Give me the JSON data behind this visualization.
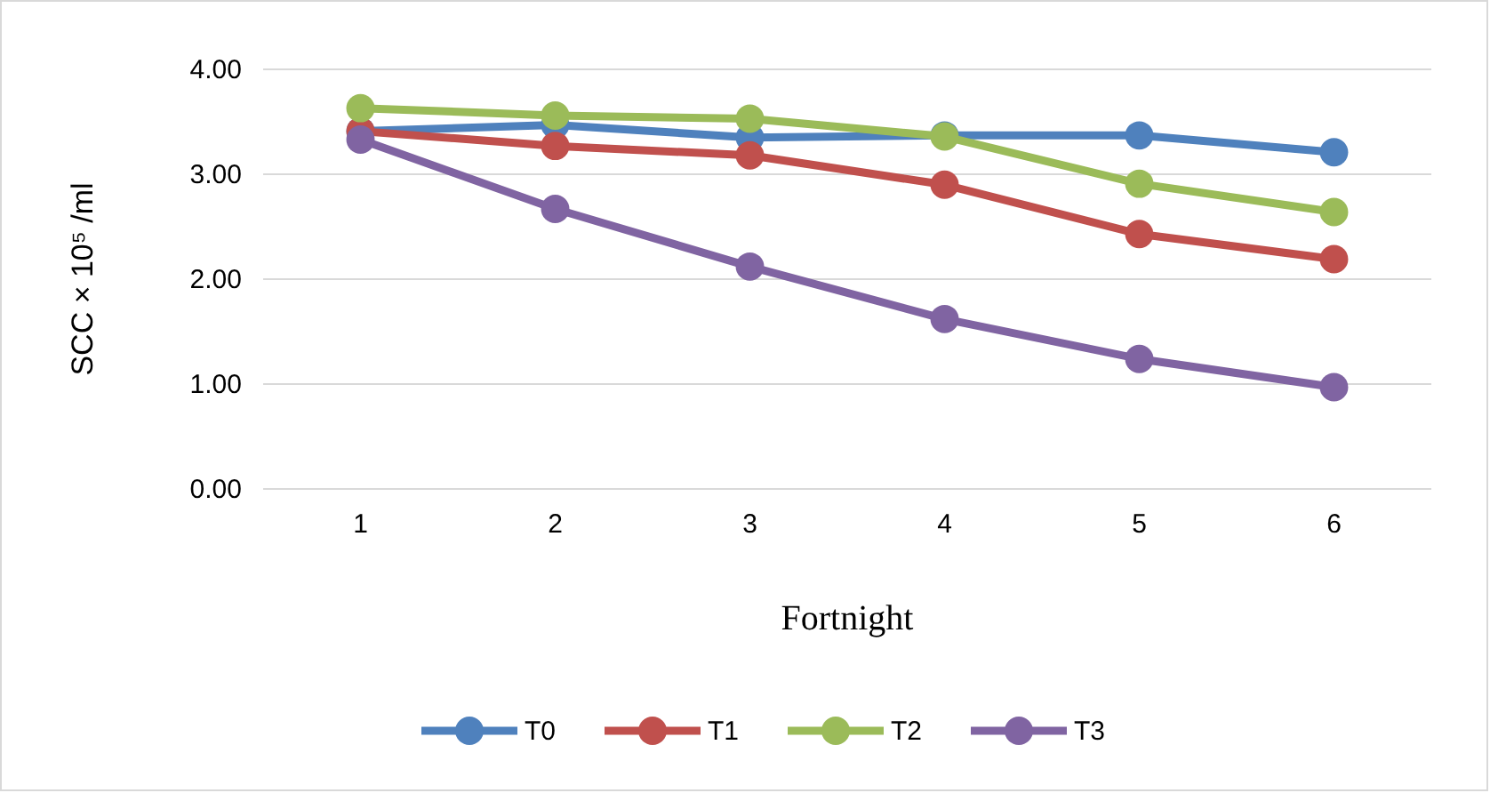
{
  "chart_data": {
    "type": "line",
    "xlabel": "Fortnight",
    "ylabel": "SCC × 10⁵ /ml",
    "categories": [
      "1",
      "2",
      "3",
      "4",
      "5",
      "6"
    ],
    "series": [
      {
        "name": "T0",
        "color": "#4f81bd",
        "values": [
          3.41,
          3.47,
          3.35,
          3.37,
          3.37,
          3.21
        ]
      },
      {
        "name": "T1",
        "color": "#c0504d",
        "values": [
          3.41,
          3.27,
          3.18,
          2.9,
          2.43,
          2.19
        ]
      },
      {
        "name": "T2",
        "color": "#9bbb59",
        "values": [
          3.63,
          3.56,
          3.53,
          3.36,
          2.91,
          2.64
        ]
      },
      {
        "name": "T3",
        "color": "#8064a2",
        "values": [
          3.33,
          2.67,
          2.12,
          1.62,
          1.24,
          0.97
        ]
      }
    ],
    "ylim": [
      0,
      4
    ],
    "yticks": [
      {
        "value": 0,
        "label": "0.00"
      },
      {
        "value": 1,
        "label": "1.00"
      },
      {
        "value": 2,
        "label": "2.00"
      },
      {
        "value": 3,
        "label": "3.00"
      },
      {
        "value": 4,
        "label": "4.00"
      }
    ],
    "grid": "y",
    "legend": "bottom",
    "marker": "circle",
    "line_style": "solid"
  }
}
